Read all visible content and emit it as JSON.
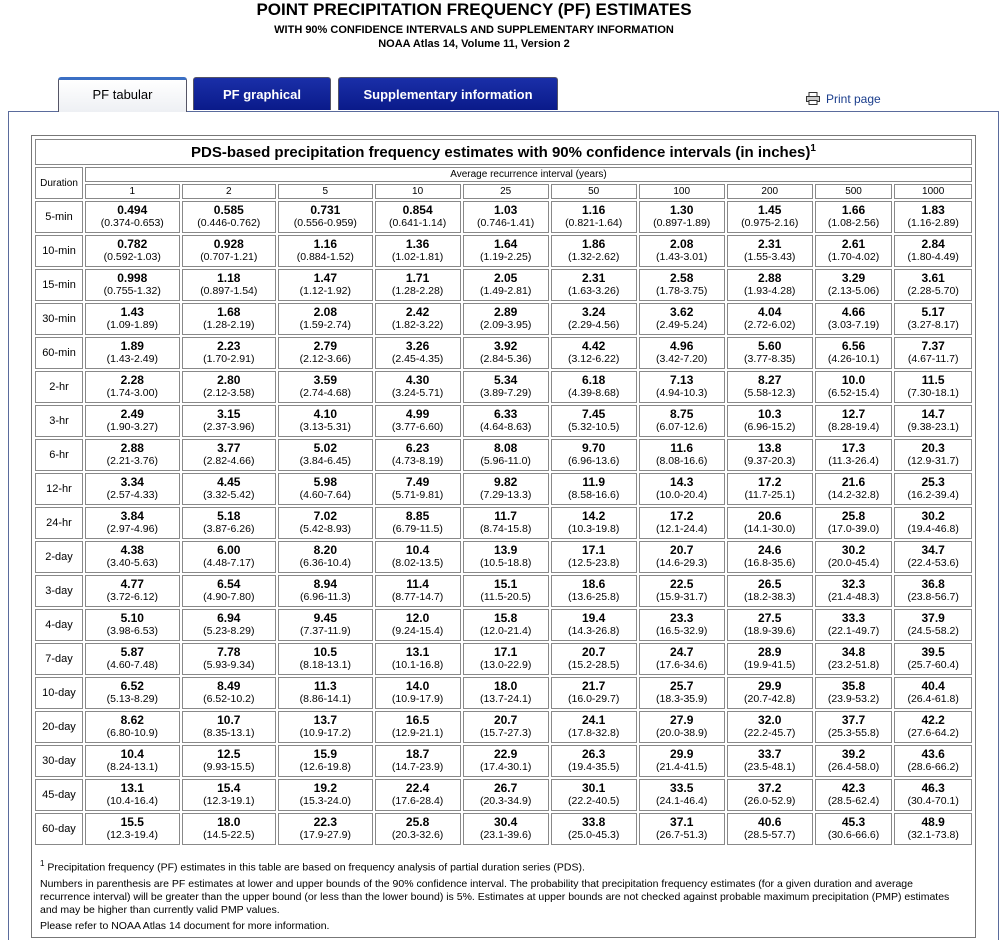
{
  "header": {
    "title": "POINT PRECIPITATION FREQUENCY (PF) ESTIMATES",
    "subtitle": "WITH 90% CONFIDENCE INTERVALS AND SUPPLEMENTARY INFORMATION",
    "source": "NOAA Atlas 14, Volume 11, Version 2"
  },
  "tabs": [
    "PF tabular",
    "PF graphical",
    "Supplementary information"
  ],
  "print": "Print page",
  "table": {
    "caption": "PDS-based precipitation frequency estimates with 90% confidence intervals (in inches)",
    "caption_note": "1",
    "duration_header": "Duration",
    "ari_header": "Average recurrence interval (years)",
    "aris": [
      "1",
      "2",
      "5",
      "10",
      "25",
      "50",
      "100",
      "200",
      "500",
      "1000"
    ],
    "rows": [
      {
        "duration": "5-min",
        "cells": [
          [
            "0.494",
            "(0.374-0.653)"
          ],
          [
            "0.585",
            "(0.446-0.762)"
          ],
          [
            "0.731",
            "(0.556-0.959)"
          ],
          [
            "0.854",
            "(0.641-1.14)"
          ],
          [
            "1.03",
            "(0.746-1.41)"
          ],
          [
            "1.16",
            "(0.821-1.64)"
          ],
          [
            "1.30",
            "(0.897-1.89)"
          ],
          [
            "1.45",
            "(0.975-2.16)"
          ],
          [
            "1.66",
            "(1.08-2.56)"
          ],
          [
            "1.83",
            "(1.16-2.89)"
          ]
        ]
      },
      {
        "duration": "10-min",
        "cells": [
          [
            "0.782",
            "(0.592-1.03)"
          ],
          [
            "0.928",
            "(0.707-1.21)"
          ],
          [
            "1.16",
            "(0.884-1.52)"
          ],
          [
            "1.36",
            "(1.02-1.81)"
          ],
          [
            "1.64",
            "(1.19-2.25)"
          ],
          [
            "1.86",
            "(1.32-2.62)"
          ],
          [
            "2.08",
            "(1.43-3.01)"
          ],
          [
            "2.31",
            "(1.55-3.43)"
          ],
          [
            "2.61",
            "(1.70-4.02)"
          ],
          [
            "2.84",
            "(1.80-4.49)"
          ]
        ]
      },
      {
        "duration": "15-min",
        "cells": [
          [
            "0.998",
            "(0.755-1.32)"
          ],
          [
            "1.18",
            "(0.897-1.54)"
          ],
          [
            "1.47",
            "(1.12-1.92)"
          ],
          [
            "1.71",
            "(1.28-2.28)"
          ],
          [
            "2.05",
            "(1.49-2.81)"
          ],
          [
            "2.31",
            "(1.63-3.26)"
          ],
          [
            "2.58",
            "(1.78-3.75)"
          ],
          [
            "2.88",
            "(1.93-4.28)"
          ],
          [
            "3.29",
            "(2.13-5.06)"
          ],
          [
            "3.61",
            "(2.28-5.70)"
          ]
        ]
      },
      {
        "duration": "30-min",
        "cells": [
          [
            "1.43",
            "(1.09-1.89)"
          ],
          [
            "1.68",
            "(1.28-2.19)"
          ],
          [
            "2.08",
            "(1.59-2.74)"
          ],
          [
            "2.42",
            "(1.82-3.22)"
          ],
          [
            "2.89",
            "(2.09-3.95)"
          ],
          [
            "3.24",
            "(2.29-4.56)"
          ],
          [
            "3.62",
            "(2.49-5.24)"
          ],
          [
            "4.04",
            "(2.72-6.02)"
          ],
          [
            "4.66",
            "(3.03-7.19)"
          ],
          [
            "5.17",
            "(3.27-8.17)"
          ]
        ]
      },
      {
        "duration": "60-min",
        "cells": [
          [
            "1.89",
            "(1.43-2.49)"
          ],
          [
            "2.23",
            "(1.70-2.91)"
          ],
          [
            "2.79",
            "(2.12-3.66)"
          ],
          [
            "3.26",
            "(2.45-4.35)"
          ],
          [
            "3.92",
            "(2.84-5.36)"
          ],
          [
            "4.42",
            "(3.12-6.22)"
          ],
          [
            "4.96",
            "(3.42-7.20)"
          ],
          [
            "5.60",
            "(3.77-8.35)"
          ],
          [
            "6.56",
            "(4.26-10.1)"
          ],
          [
            "7.37",
            "(4.67-11.7)"
          ]
        ]
      },
      {
        "duration": "2-hr",
        "cells": [
          [
            "2.28",
            "(1.74-3.00)"
          ],
          [
            "2.80",
            "(2.12-3.58)"
          ],
          [
            "3.59",
            "(2.74-4.68)"
          ],
          [
            "4.30",
            "(3.24-5.71)"
          ],
          [
            "5.34",
            "(3.89-7.29)"
          ],
          [
            "6.18",
            "(4.39-8.68)"
          ],
          [
            "7.13",
            "(4.94-10.3)"
          ],
          [
            "8.27",
            "(5.58-12.3)"
          ],
          [
            "10.0",
            "(6.52-15.4)"
          ],
          [
            "11.5",
            "(7.30-18.1)"
          ]
        ]
      },
      {
        "duration": "3-hr",
        "cells": [
          [
            "2.49",
            "(1.90-3.27)"
          ],
          [
            "3.15",
            "(2.37-3.96)"
          ],
          [
            "4.10",
            "(3.13-5.31)"
          ],
          [
            "4.99",
            "(3.77-6.60)"
          ],
          [
            "6.33",
            "(4.64-8.63)"
          ],
          [
            "7.45",
            "(5.32-10.5)"
          ],
          [
            "8.75",
            "(6.07-12.6)"
          ],
          [
            "10.3",
            "(6.96-15.2)"
          ],
          [
            "12.7",
            "(8.28-19.4)"
          ],
          [
            "14.7",
            "(9.38-23.1)"
          ]
        ]
      },
      {
        "duration": "6-hr",
        "cells": [
          [
            "2.88",
            "(2.21-3.76)"
          ],
          [
            "3.77",
            "(2.82-4.66)"
          ],
          [
            "5.02",
            "(3.84-6.45)"
          ],
          [
            "6.23",
            "(4.73-8.19)"
          ],
          [
            "8.08",
            "(5.96-11.0)"
          ],
          [
            "9.70",
            "(6.96-13.6)"
          ],
          [
            "11.6",
            "(8.08-16.6)"
          ],
          [
            "13.8",
            "(9.37-20.3)"
          ],
          [
            "17.3",
            "(11.3-26.4)"
          ],
          [
            "20.3",
            "(12.9-31.7)"
          ]
        ]
      },
      {
        "duration": "12-hr",
        "cells": [
          [
            "3.34",
            "(2.57-4.33)"
          ],
          [
            "4.45",
            "(3.32-5.42)"
          ],
          [
            "5.98",
            "(4.60-7.64)"
          ],
          [
            "7.49",
            "(5.71-9.81)"
          ],
          [
            "9.82",
            "(7.29-13.3)"
          ],
          [
            "11.9",
            "(8.58-16.6)"
          ],
          [
            "14.3",
            "(10.0-20.4)"
          ],
          [
            "17.2",
            "(11.7-25.1)"
          ],
          [
            "21.6",
            "(14.2-32.8)"
          ],
          [
            "25.3",
            "(16.2-39.4)"
          ]
        ]
      },
      {
        "duration": "24-hr",
        "cells": [
          [
            "3.84",
            "(2.97-4.96)"
          ],
          [
            "5.18",
            "(3.87-6.26)"
          ],
          [
            "7.02",
            "(5.42-8.93)"
          ],
          [
            "8.85",
            "(6.79-11.5)"
          ],
          [
            "11.7",
            "(8.74-15.8)"
          ],
          [
            "14.2",
            "(10.3-19.8)"
          ],
          [
            "17.2",
            "(12.1-24.4)"
          ],
          [
            "20.6",
            "(14.1-30.0)"
          ],
          [
            "25.8",
            "(17.0-39.0)"
          ],
          [
            "30.2",
            "(19.4-46.8)"
          ]
        ]
      },
      {
        "duration": "2-day",
        "cells": [
          [
            "4.38",
            "(3.40-5.63)"
          ],
          [
            "6.00",
            "(4.48-7.17)"
          ],
          [
            "8.20",
            "(6.36-10.4)"
          ],
          [
            "10.4",
            "(8.02-13.5)"
          ],
          [
            "13.9",
            "(10.5-18.8)"
          ],
          [
            "17.1",
            "(12.5-23.8)"
          ],
          [
            "20.7",
            "(14.6-29.3)"
          ],
          [
            "24.6",
            "(16.8-35.6)"
          ],
          [
            "30.2",
            "(20.0-45.4)"
          ],
          [
            "34.7",
            "(22.4-53.6)"
          ]
        ]
      },
      {
        "duration": "3-day",
        "cells": [
          [
            "4.77",
            "(3.72-6.12)"
          ],
          [
            "6.54",
            "(4.90-7.80)"
          ],
          [
            "8.94",
            "(6.96-11.3)"
          ],
          [
            "11.4",
            "(8.77-14.7)"
          ],
          [
            "15.1",
            "(11.5-20.5)"
          ],
          [
            "18.6",
            "(13.6-25.8)"
          ],
          [
            "22.5",
            "(15.9-31.7)"
          ],
          [
            "26.5",
            "(18.2-38.3)"
          ],
          [
            "32.3",
            "(21.4-48.3)"
          ],
          [
            "36.8",
            "(23.8-56.7)"
          ]
        ]
      },
      {
        "duration": "4-day",
        "cells": [
          [
            "5.10",
            "(3.98-6.53)"
          ],
          [
            "6.94",
            "(5.23-8.29)"
          ],
          [
            "9.45",
            "(7.37-11.9)"
          ],
          [
            "12.0",
            "(9.24-15.4)"
          ],
          [
            "15.8",
            "(12.0-21.4)"
          ],
          [
            "19.4",
            "(14.3-26.8)"
          ],
          [
            "23.3",
            "(16.5-32.9)"
          ],
          [
            "27.5",
            "(18.9-39.6)"
          ],
          [
            "33.3",
            "(22.1-49.7)"
          ],
          [
            "37.9",
            "(24.5-58.2)"
          ]
        ]
      },
      {
        "duration": "7-day",
        "cells": [
          [
            "5.87",
            "(4.60-7.48)"
          ],
          [
            "7.78",
            "(5.93-9.34)"
          ],
          [
            "10.5",
            "(8.18-13.1)"
          ],
          [
            "13.1",
            "(10.1-16.8)"
          ],
          [
            "17.1",
            "(13.0-22.9)"
          ],
          [
            "20.7",
            "(15.2-28.5)"
          ],
          [
            "24.7",
            "(17.6-34.6)"
          ],
          [
            "28.9",
            "(19.9-41.5)"
          ],
          [
            "34.8",
            "(23.2-51.8)"
          ],
          [
            "39.5",
            "(25.7-60.4)"
          ]
        ]
      },
      {
        "duration": "10-day",
        "cells": [
          [
            "6.52",
            "(5.13-8.29)"
          ],
          [
            "8.49",
            "(6.52-10.2)"
          ],
          [
            "11.3",
            "(8.86-14.1)"
          ],
          [
            "14.0",
            "(10.9-17.9)"
          ],
          [
            "18.0",
            "(13.7-24.1)"
          ],
          [
            "21.7",
            "(16.0-29.7)"
          ],
          [
            "25.7",
            "(18.3-35.9)"
          ],
          [
            "29.9",
            "(20.7-42.8)"
          ],
          [
            "35.8",
            "(23.9-53.2)"
          ],
          [
            "40.4",
            "(26.4-61.8)"
          ]
        ]
      },
      {
        "duration": "20-day",
        "cells": [
          [
            "8.62",
            "(6.80-10.9)"
          ],
          [
            "10.7",
            "(8.35-13.1)"
          ],
          [
            "13.7",
            "(10.9-17.2)"
          ],
          [
            "16.5",
            "(12.9-21.1)"
          ],
          [
            "20.7",
            "(15.7-27.3)"
          ],
          [
            "24.1",
            "(17.8-32.8)"
          ],
          [
            "27.9",
            "(20.0-38.9)"
          ],
          [
            "32.0",
            "(22.2-45.7)"
          ],
          [
            "37.7",
            "(25.3-55.8)"
          ],
          [
            "42.2",
            "(27.6-64.2)"
          ]
        ]
      },
      {
        "duration": "30-day",
        "cells": [
          [
            "10.4",
            "(8.24-13.1)"
          ],
          [
            "12.5",
            "(9.93-15.5)"
          ],
          [
            "15.9",
            "(12.6-19.8)"
          ],
          [
            "18.7",
            "(14.7-23.9)"
          ],
          [
            "22.9",
            "(17.4-30.1)"
          ],
          [
            "26.3",
            "(19.4-35.5)"
          ],
          [
            "29.9",
            "(21.4-41.5)"
          ],
          [
            "33.7",
            "(23.5-48.1)"
          ],
          [
            "39.2",
            "(26.4-58.0)"
          ],
          [
            "43.6",
            "(28.6-66.2)"
          ]
        ]
      },
      {
        "duration": "45-day",
        "cells": [
          [
            "13.1",
            "(10.4-16.4)"
          ],
          [
            "15.4",
            "(12.3-19.1)"
          ],
          [
            "19.2",
            "(15.3-24.0)"
          ],
          [
            "22.4",
            "(17.6-28.4)"
          ],
          [
            "26.7",
            "(20.3-34.9)"
          ],
          [
            "30.1",
            "(22.2-40.5)"
          ],
          [
            "33.5",
            "(24.1-46.4)"
          ],
          [
            "37.2",
            "(26.0-52.9)"
          ],
          [
            "42.3",
            "(28.5-62.4)"
          ],
          [
            "46.3",
            "(30.4-70.1)"
          ]
        ]
      },
      {
        "duration": "60-day",
        "cells": [
          [
            "15.5",
            "(12.3-19.4)"
          ],
          [
            "18.0",
            "(14.5-22.5)"
          ],
          [
            "22.3",
            "(17.9-27.9)"
          ],
          [
            "25.8",
            "(20.3-32.6)"
          ],
          [
            "30.4",
            "(23.1-39.6)"
          ],
          [
            "33.8",
            "(25.0-45.3)"
          ],
          [
            "37.1",
            "(26.7-51.3)"
          ],
          [
            "40.6",
            "(28.5-57.7)"
          ],
          [
            "45.3",
            "(30.6-66.6)"
          ],
          [
            "48.9",
            "(32.1-73.8)"
          ]
        ]
      }
    ]
  },
  "notes": [
    "Precipitation frequency (PF) estimates in this table are based on frequency analysis of partial duration series (PDS).",
    "Numbers in parenthesis are PF estimates at lower and upper bounds of the 90% confidence interval. The probability that precipitation frequency estimates (for a given duration and average recurrence interval) will be greater than the upper bound (or less than the lower bound) is 5%. Estimates at upper bounds are not checked against probable maximum precipitation (PMP) estimates and may be higher than currently valid PMP values.",
    "Please refer to NOAA Atlas 14 document for more information."
  ]
}
